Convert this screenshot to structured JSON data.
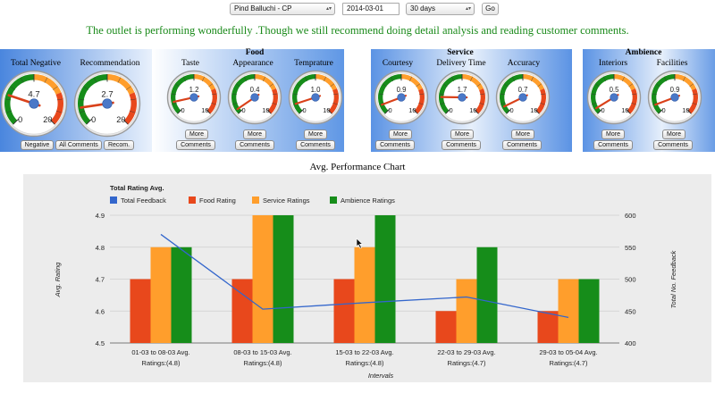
{
  "controls": {
    "outlet": "Pind Balluchi - CP",
    "date": "2014-03-01",
    "range": "30 days",
    "go_label": "Go"
  },
  "status_message": "The outlet is performing wonderfully .Though we still recommend doing detail analysis and reading customer comments.",
  "groups": {
    "food": "Food",
    "service": "Service",
    "ambience": "Ambience"
  },
  "gauges": [
    {
      "label": "Total Negative",
      "value": 4.7,
      "min": 0,
      "max": 20,
      "big": true
    },
    {
      "label": "Recommendation",
      "value": 2.7,
      "min": 0,
      "max": 20,
      "big": true
    },
    {
      "label": "Taste",
      "value": 1.2,
      "min": 0,
      "max": 10,
      "big": false
    },
    {
      "label": "Appearance",
      "value": 0.4,
      "min": 0,
      "max": 10,
      "big": false
    },
    {
      "label": "Temprature",
      "value": 1.0,
      "min": 0,
      "max": 10,
      "big": false
    },
    {
      "label": "Courtesy",
      "value": 0.9,
      "min": 0,
      "max": 10,
      "big": false
    },
    {
      "label": "Delivery Time",
      "value": 1.7,
      "min": 0,
      "max": 10,
      "big": false
    },
    {
      "label": "Accuracy",
      "value": 0.7,
      "min": 0,
      "max": 10,
      "big": false
    },
    {
      "label": "Interiors",
      "value": 0.5,
      "min": 0,
      "max": 10,
      "big": false
    },
    {
      "label": "Facilities",
      "value": 0.9,
      "min": 0,
      "max": 10,
      "big": false
    }
  ],
  "gauge_buttons": {
    "negative": "Negative",
    "all_comments": "All Comments",
    "recom": "Recom.",
    "more": "More",
    "comments": "Comments"
  },
  "colors": {
    "total_feedback": "#3366cc",
    "food": "#e8481c",
    "service": "#ff9e2c",
    "ambience": "#168d1a",
    "status_text": "#1a8a1a"
  },
  "chart_title": "Avg. Performance Chart",
  "chart_data": {
    "type": "bar",
    "title": "",
    "legend_title": "Total Rating Avg.",
    "categories": [
      "01-03 to 08-03 Avg.",
      "08-03 to 15-03 Avg.",
      "15-03 to 22-03 Avg.",
      "22-03 to 29-03 Avg.",
      "29-03 to 05-04 Avg."
    ],
    "category_sublabels": [
      "Ratings:(4.8)",
      "Ratings:(4.8)",
      "Ratings:(4.8)",
      "Ratings:(4.7)",
      "Ratings:(4.7)"
    ],
    "series": [
      {
        "name": "Food Rating",
        "values": [
          4.7,
          4.7,
          4.7,
          4.6,
          4.6
        ]
      },
      {
        "name": "Service Ratings",
        "values": [
          4.8,
          4.9,
          4.8,
          4.7,
          4.7
        ]
      },
      {
        "name": "Ambience Ratings",
        "values": [
          4.8,
          4.9,
          4.9,
          4.8,
          4.7
        ]
      }
    ],
    "line_series": {
      "name": "Total Feedback",
      "values": [
        570,
        453,
        463,
        472,
        440
      ]
    },
    "xlabel": "Intervals",
    "ylabel": "Avg. Rating",
    "y2label": "Total No. Feedback",
    "ylim": [
      4.5,
      4.9
    ],
    "yticks": [
      "4.9",
      "4.8",
      "4.7",
      "4.6",
      "4.5"
    ],
    "y2lim": [
      400,
      600
    ],
    "y2ticks": [
      "600",
      "550",
      "500",
      "450",
      "400"
    ],
    "legend_position": "top-left",
    "grid": true
  }
}
